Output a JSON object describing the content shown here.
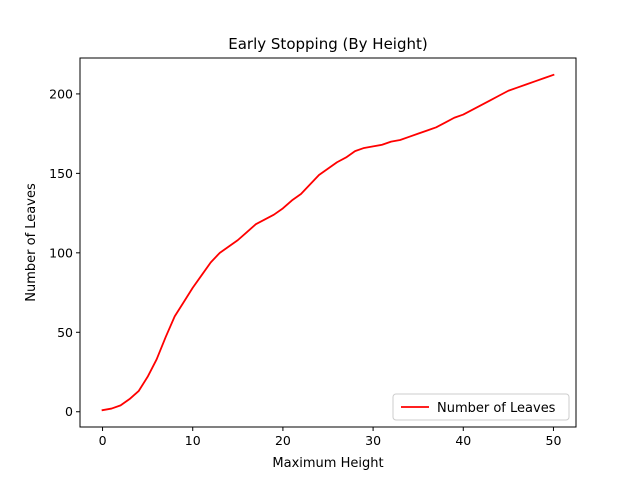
{
  "chart_data": {
    "type": "line",
    "title": "Early Stopping (By Height)",
    "xlabel": "Maximum Height",
    "ylabel": "Number of Leaves",
    "xlim": [
      -2.5,
      52.5
    ],
    "ylim": [
      -9.6,
      222.6
    ],
    "xticks": [
      0,
      10,
      20,
      30,
      40,
      50
    ],
    "yticks": [
      0,
      50,
      100,
      150,
      200
    ],
    "grid": false,
    "legend_position": "lower right",
    "series": [
      {
        "name": "Number of Leaves",
        "color": "#ff0000",
        "x": [
          0,
          1,
          2,
          3,
          4,
          5,
          6,
          7,
          8,
          9,
          10,
          11,
          12,
          13,
          14,
          15,
          16,
          17,
          18,
          19,
          20,
          21,
          22,
          23,
          24,
          25,
          26,
          27,
          28,
          29,
          30,
          31,
          32,
          33,
          34,
          35,
          36,
          37,
          38,
          39,
          40,
          41,
          42,
          43,
          44,
          45,
          46,
          47,
          48,
          49,
          50
        ],
        "y": [
          1,
          2,
          4,
          8,
          13,
          22,
          33,
          47,
          60,
          69,
          78,
          86,
          94,
          100,
          104,
          108,
          113,
          118,
          121,
          124,
          128,
          133,
          137,
          143,
          149,
          153,
          157,
          160,
          164,
          166,
          167,
          168,
          170,
          171,
          173,
          175,
          177,
          179,
          182,
          185,
          187,
          190,
          193,
          196,
          199,
          202,
          204,
          206,
          208,
          210,
          212
        ]
      }
    ]
  }
}
